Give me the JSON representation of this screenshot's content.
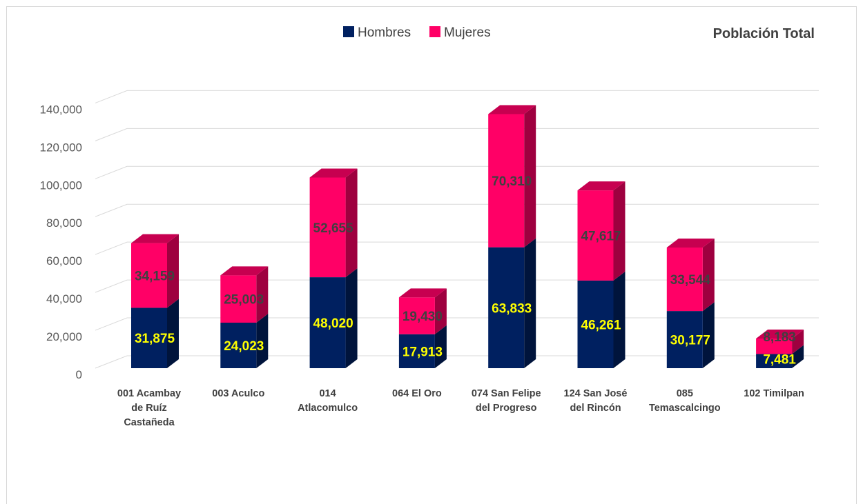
{
  "chart_data": {
    "type": "bar",
    "stacked": true,
    "three_d": true,
    "title": "Población Total",
    "xlabel": "",
    "ylabel": "",
    "ylim": [
      0,
      140000
    ],
    "yticks": [
      "0",
      "20,000",
      "40,000",
      "60,000",
      "80,000",
      "100,000",
      "120,000",
      "140,000"
    ],
    "grid": true,
    "legend": "top-center",
    "categories": [
      [
        "001 Acambay",
        "de Ruíz",
        "Castañeda"
      ],
      [
        "003 Aculco"
      ],
      [
        "014",
        "Atlacomulco"
      ],
      [
        "064 El Oro"
      ],
      [
        "074 San Felipe",
        "del Progreso"
      ],
      [
        "124 San José",
        "del Rincón"
      ],
      [
        "085",
        "Temascalcingo"
      ],
      [
        "102 Timilpan"
      ]
    ],
    "series": [
      {
        "name": "Hombres",
        "color": "#002060",
        "label_color": "#ffff00",
        "values": [
          31875,
          24023,
          48020,
          17913,
          63833,
          46261,
          30177,
          7481
        ],
        "labels": [
          "31,875",
          "24,023",
          "48,020",
          "17,913",
          "63,833",
          "46,261",
          "30,177",
          "7,481"
        ]
      },
      {
        "name": "Mujeres",
        "color": "#ff0066",
        "label_color": "#404040",
        "values": [
          34159,
          25003,
          52655,
          19430,
          70310,
          47617,
          33544,
          8183
        ],
        "labels": [
          "34,159",
          "25,003",
          "52,655",
          "19,430",
          "70,310",
          "47,617",
          "33,544",
          "8,183"
        ]
      }
    ]
  }
}
